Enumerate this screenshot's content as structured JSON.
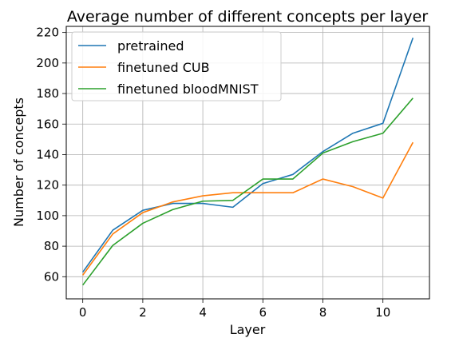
{
  "chart_data": {
    "type": "line",
    "title": "Average number of different concepts per layer",
    "xlabel": "Layer",
    "ylabel": "Number of concepts",
    "x": [
      0,
      1,
      2,
      3,
      4,
      5,
      6,
      7,
      8,
      9,
      10,
      11
    ],
    "xlim": [
      -0.55,
      11.55
    ],
    "ylim": [
      45.5,
      224
    ],
    "xticks": [
      0,
      2,
      4,
      6,
      8,
      10
    ],
    "yticks": [
      60,
      80,
      100,
      120,
      140,
      160,
      180,
      200,
      220
    ],
    "grid": true,
    "legend_position": "top-left",
    "series": [
      {
        "name": "pretrained",
        "color": "#1f77b4",
        "values": [
          63,
          90.5,
          103.5,
          108,
          108,
          105.5,
          121,
          127,
          142,
          154,
          160.5,
          216.5
        ]
      },
      {
        "name": "finetuned CUB",
        "color": "#ff7f0e",
        "values": [
          61,
          88,
          102,
          109,
          113,
          115,
          115,
          115,
          124,
          119,
          111.5,
          148
        ]
      },
      {
        "name": "finetuned bloodMNIST",
        "color": "#2ca02c",
        "values": [
          54.5,
          80.5,
          95,
          104,
          109.5,
          110,
          124,
          124,
          141,
          148.5,
          154,
          177
        ]
      }
    ]
  }
}
